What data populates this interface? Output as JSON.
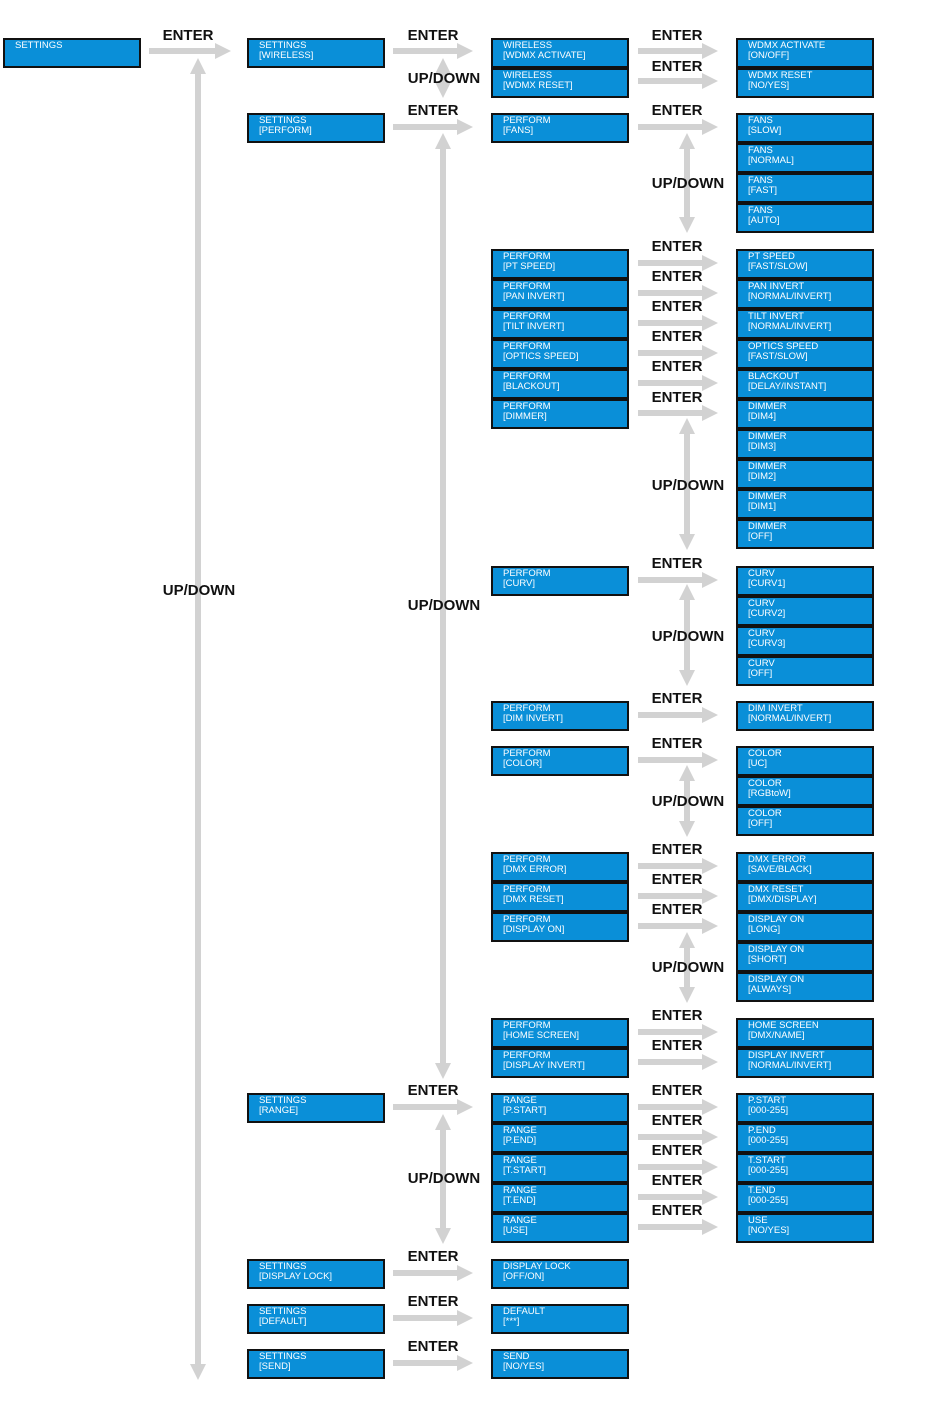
{
  "colors": {
    "box_fill": "#0a8fd8",
    "box_border": "#111111",
    "box_text": "#ffffff",
    "arrow": "#d2d2d2",
    "label": "#111111"
  },
  "labels": {
    "enter": "ENTER",
    "updown": "UP/DOWN"
  },
  "col1": [
    {
      "line1": "SETTINGS",
      "line2": ""
    }
  ],
  "col2": [
    {
      "line1": "SETTINGS",
      "line2": "[WIRELESS]"
    },
    {
      "line1": "SETTINGS",
      "line2": "[PERFORM]"
    },
    {
      "line1": "SETTINGS",
      "line2": "[RANGE]"
    },
    {
      "line1": "SETTINGS",
      "line2": "[DISPLAY LOCK]"
    },
    {
      "line1": "SETTINGS",
      "line2": "[DEFAULT]"
    },
    {
      "line1": "SETTINGS",
      "line2": "[SEND]"
    }
  ],
  "col3": [
    {
      "line1": "WIRELESS",
      "line2": "[WDMX ACTIVATE]"
    },
    {
      "line1": "WIRELESS",
      "line2": "[WDMX RESET]"
    },
    {
      "line1": "PERFORM",
      "line2": "[FANS]"
    },
    {
      "line1": "PERFORM",
      "line2": "[PT SPEED]"
    },
    {
      "line1": "PERFORM",
      "line2": "[PAN INVERT]"
    },
    {
      "line1": "PERFORM",
      "line2": "[TILT INVERT]"
    },
    {
      "line1": "PERFORM",
      "line2": "[OPTICS SPEED]"
    },
    {
      "line1": "PERFORM",
      "line2": "[BLACKOUT]"
    },
    {
      "line1": "PERFORM",
      "line2": "[DIMMER]"
    },
    {
      "line1": "PERFORM",
      "line2": "[CURV]"
    },
    {
      "line1": "PERFORM",
      "line2": "[DIM INVERT]"
    },
    {
      "line1": "PERFORM",
      "line2": "[COLOR]"
    },
    {
      "line1": "PERFORM",
      "line2": "[DMX ERROR]"
    },
    {
      "line1": "PERFORM",
      "line2": "[DMX RESET]"
    },
    {
      "line1": "PERFORM",
      "line2": "[DISPLAY ON]"
    },
    {
      "line1": "PERFORM",
      "line2": "[HOME SCREEN]"
    },
    {
      "line1": "PERFORM",
      "line2": "[DISPLAY INVERT]"
    },
    {
      "line1": "RANGE",
      "line2": "[P.START]"
    },
    {
      "line1": "RANGE",
      "line2": "[P.END]"
    },
    {
      "line1": "RANGE",
      "line2": "[T.START]"
    },
    {
      "line1": "RANGE",
      "line2": "[T.END]"
    },
    {
      "line1": "RANGE",
      "line2": "[USE]"
    },
    {
      "line1": "DISPLAY LOCK",
      "line2": "[OFF/ON]"
    },
    {
      "line1": "DEFAULT",
      "line2": "[***]"
    },
    {
      "line1": "SEND",
      "line2": "[NO/YES]"
    }
  ],
  "col4": [
    {
      "line1": "WDMX ACTIVATE",
      "line2": "[ON/OFF]"
    },
    {
      "line1": "WDMX RESET",
      "line2": "[NO/YES]"
    },
    {
      "line1": "FANS",
      "line2": "[SLOW]"
    },
    {
      "line1": "FANS",
      "line2": "[NORMAL]"
    },
    {
      "line1": "FANS",
      "line2": "[FAST]"
    },
    {
      "line1": "FANS",
      "line2": "[AUTO]"
    },
    {
      "line1": "PT SPEED",
      "line2": "[FAST/SLOW]"
    },
    {
      "line1": "PAN INVERT",
      "line2": "[NORMAL/INVERT]"
    },
    {
      "line1": "TILT INVERT",
      "line2": "[NORMAL/INVERT]"
    },
    {
      "line1": "OPTICS SPEED",
      "line2": "[FAST/SLOW]"
    },
    {
      "line1": "BLACKOUT",
      "line2": "[DELAY/INSTANT]"
    },
    {
      "line1": "DIMMER",
      "line2": "[DIM4]"
    },
    {
      "line1": "DIMMER",
      "line2": "[DIM3]"
    },
    {
      "line1": "DIMMER",
      "line2": "[DIM2]"
    },
    {
      "line1": "DIMMER",
      "line2": "[DIM1]"
    },
    {
      "line1": "DIMMER",
      "line2": "[OFF]"
    },
    {
      "line1": "CURV",
      "line2": "[CURV1]"
    },
    {
      "line1": "CURV",
      "line2": "[CURV2]"
    },
    {
      "line1": "CURV",
      "line2": "[CURV3]"
    },
    {
      "line1": "CURV",
      "line2": "[OFF]"
    },
    {
      "line1": "DIM INVERT",
      "line2": "[NORMAL/INVERT]"
    },
    {
      "line1": "COLOR",
      "line2": "[UC]"
    },
    {
      "line1": "COLOR",
      "line2": "[RGBtoW]"
    },
    {
      "line1": "COLOR",
      "line2": "[OFF]"
    },
    {
      "line1": "DMX ERROR",
      "line2": "[SAVE/BLACK]"
    },
    {
      "line1": "DMX RESET",
      "line2": "[DMX/DISPLAY]"
    },
    {
      "line1": "DISPLAY ON",
      "line2": "[LONG]"
    },
    {
      "line1": "DISPLAY ON",
      "line2": "[SHORT]"
    },
    {
      "line1": "DISPLAY ON",
      "line2": "[ALWAYS]"
    },
    {
      "line1": "HOME SCREEN",
      "line2": "[DMX/NAME]"
    },
    {
      "line1": "DISPLAY INVERT",
      "line2": "[NORMAL/INVERT]"
    },
    {
      "line1": "P.START",
      "line2": "[000-255]"
    },
    {
      "line1": "P.END",
      "line2": "[000-255]"
    },
    {
      "line1": "T.START",
      "line2": "[000-255]"
    },
    {
      "line1": "T.END",
      "line2": "[000-255]"
    },
    {
      "line1": "USE",
      "line2": "[NO/YES]"
    }
  ]
}
